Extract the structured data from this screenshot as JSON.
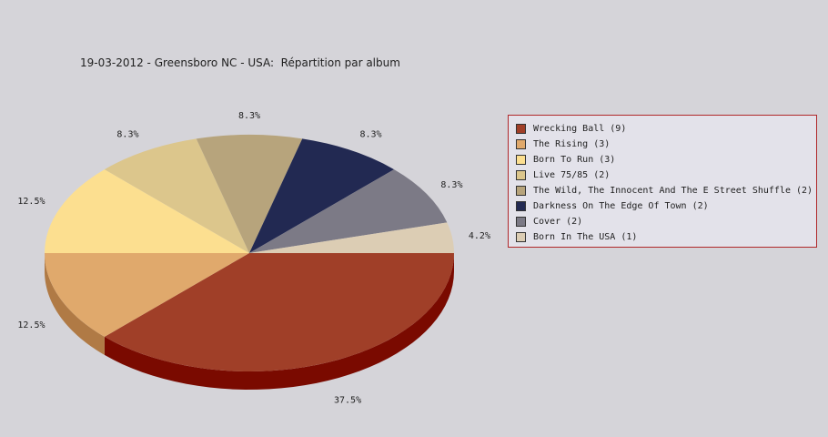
{
  "chart_data": {
    "type": "pie",
    "title": "19-03-2012 - Greensboro NC - USA:  Répartition par album",
    "slices": [
      {
        "label": "Wrecking Ball (9)",
        "value": 9,
        "percent_label": "37.5%",
        "color": "#a03f28",
        "side_color": "#7a0a00"
      },
      {
        "label": "The Rising (3)",
        "value": 3,
        "percent_label": "12.5%",
        "color": "#e0a96c",
        "side_color": "#b07a45"
      },
      {
        "label": "Born To Run (3)",
        "value": 3,
        "percent_label": "12.5%",
        "color": "#fcdf90",
        "side_color": "#c9ab60"
      },
      {
        "label": "Live 75/85 (2)",
        "value": 2,
        "percent_label": "8.3%",
        "color": "#dcc68c",
        "side_color": "#a99560"
      },
      {
        "label": "The Wild, The Innocent And The E Street Shuffle (2)",
        "value": 2,
        "percent_label": "8.3%",
        "color": "#b7a47c",
        "side_color": "#857450"
      },
      {
        "label": "Darkness On The Edge Of Town (2)",
        "value": 2,
        "percent_label": "8.3%",
        "color": "#222952",
        "side_color": "#101430"
      },
      {
        "label": "Cover (2)",
        "value": 2,
        "percent_label": "8.3%",
        "color": "#7c7a86",
        "side_color": "#55535e"
      },
      {
        "label": "Born In The USA (1)",
        "value": 1,
        "percent_label": "4.2%",
        "color": "#dccdb4",
        "side_color": "#aa9c84"
      }
    ],
    "legend_position": "right",
    "style": "3d"
  }
}
